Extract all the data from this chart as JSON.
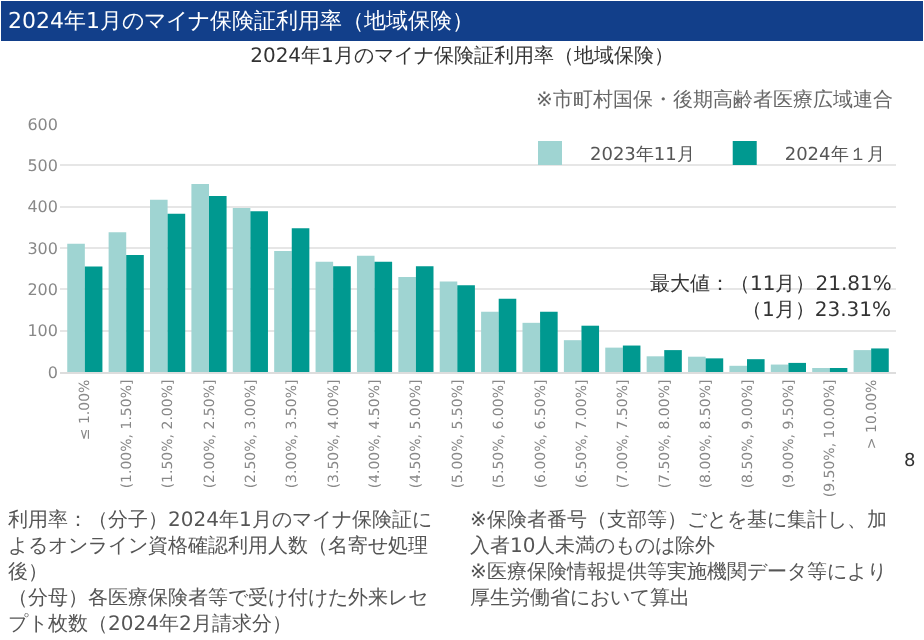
{
  "chart_data": {
    "type": "bar",
    "title": "2024年1月のマイナ保険証利用率（地域保険）",
    "subtitle": "※市町村国保・後期高齢者医療広域連合",
    "categories": [
      "≤ 1.00%",
      "(1.00%, 1.50%]",
      "(1.50%, 2.00%]",
      "(2.00%, 2.50%]",
      "(2.50%, 3.00%]",
      "(3.00%, 3.50%]",
      "(3.50%, 4.00%]",
      "(4.00%, 4.50%]",
      "(4.50%, 5.00%]",
      "(5.00%, 5.50%]",
      "(5.50%, 6.00%]",
      "(6.00%, 6.50%]",
      "(6.50%, 7.00%]",
      "(7.00%, 7.50%]",
      "(7.50%, 8.00%]",
      "(8.00%, 8.50%]",
      "(8.50%, 9.00%]",
      "(9.00%, 9.50%]",
      "(9.50%, 10.00%]",
      "> 10.00%"
    ],
    "series": [
      {
        "name": "2023年11月",
        "color": "#9fd4d2",
        "values": [
          310,
          338,
          417,
          455,
          397,
          293,
          267,
          281,
          230,
          219,
          146,
          119,
          77,
          59,
          38,
          37,
          15,
          18,
          8,
          53
        ]
      },
      {
        "name": "2024年１月",
        "color": "#009990",
        "values": [
          255,
          283,
          383,
          426,
          389,
          348,
          256,
          267,
          256,
          210,
          177,
          146,
          112,
          64,
          53,
          33,
          31,
          22,
          9,
          57
        ]
      }
    ],
    "ylim": [
      0,
      600
    ],
    "yticks": [
      0,
      100,
      200,
      300,
      400,
      500,
      600
    ],
    "grid": "y",
    "legend": "top right",
    "annotations": [
      "2024年1月のマイナ保険証利用率（地域保険）",
      "最大値：（11月）21.81%",
      "（1月）23.31%",
      "利用率：（分子）2024年1月のマイナ保険証によるオンライン資格確認利用人数（名寄せ処理後）",
      "（分母）各医療保険者等で受け付けた外来レセプト枚数（2024年2月請求分）",
      "※保険者番号（支部等）ごとを基に集計し、加入者10人未満のものは除外",
      "※医療保険情報提供等実施機関データ等により厚生労働省において算出",
      "8"
    ]
  }
}
